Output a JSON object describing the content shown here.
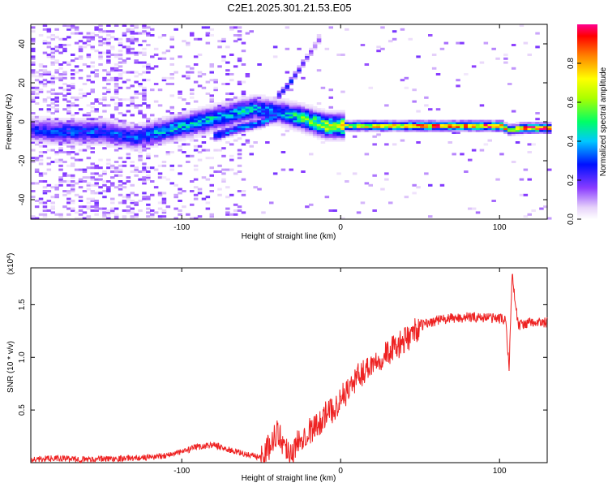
{
  "figure": {
    "title": "C2E1.2025.301.21.53.E05"
  },
  "chart_data": [
    {
      "type": "heatmap",
      "name": "spectrogram",
      "xlabel": "Height of straight line (km)",
      "ylabel": "Frequency (Hz)",
      "xlim": [
        -195,
        130
      ],
      "ylim": [
        -50,
        50
      ],
      "xticks": [
        -100,
        0,
        100
      ],
      "xtick_labels": [
        "-100",
        "0",
        "100"
      ],
      "yticks": [
        -40,
        -20,
        0,
        20,
        40
      ],
      "ytick_labels": [
        "-40",
        "-20",
        "0",
        "20",
        "40"
      ],
      "colorbar": {
        "label": "Normalized spectral amplitude",
        "range": [
          0,
          1
        ],
        "ticks": [
          0.0,
          0.2,
          0.4,
          0.6,
          0.8
        ],
        "tick_labels": [
          "0.0",
          "0.2",
          "0.4",
          "0.6",
          "0.8"
        ],
        "colors": [
          "#ffffff",
          "#b070f0",
          "#5500ff",
          "#0000ff",
          "#00c8ff",
          "#00ff66",
          "#aaff00",
          "#ffff00",
          "#ff8000",
          "#ff0000",
          "#ff0080"
        ]
      },
      "ridge": [
        {
          "x": -195,
          "y": -4,
          "amp": 0.25
        },
        {
          "x": -175,
          "y": -5,
          "amp": 0.3
        },
        {
          "x": -150,
          "y": -5,
          "amp": 0.3
        },
        {
          "x": -130,
          "y": -8,
          "amp": 0.3
        },
        {
          "x": -110,
          "y": -4,
          "amp": 0.38
        },
        {
          "x": -90,
          "y": 0,
          "amp": 0.4
        },
        {
          "x": -70,
          "y": 4,
          "amp": 0.4
        },
        {
          "x": -55,
          "y": 7,
          "amp": 0.38
        },
        {
          "x": -40,
          "y": 5,
          "amp": 0.35
        },
        {
          "x": -25,
          "y": 2,
          "amp": 0.5
        },
        {
          "x": -10,
          "y": -2,
          "amp": 0.6
        },
        {
          "x": 5,
          "y": -2,
          "amp": 0.7
        },
        {
          "x": 50,
          "y": -2,
          "amp": 0.85
        },
        {
          "x": 100,
          "y": -2,
          "amp": 0.9
        },
        {
          "x": 105,
          "y": -4,
          "amp": 0.7
        },
        {
          "x": 115,
          "y": -3,
          "amp": 0.9
        },
        {
          "x": 130,
          "y": -3,
          "amp": 0.9
        }
      ],
      "lower_branch": [
        {
          "x": -80,
          "y": -7,
          "amp": 0.35
        },
        {
          "x": -65,
          "y": -3,
          "amp": 0.35
        },
        {
          "x": -50,
          "y": 0,
          "amp": 0.35
        },
        {
          "x": -40,
          "y": 3,
          "amp": 0.35
        },
        {
          "x": -30,
          "y": 2,
          "amp": 0.3
        }
      ],
      "upper_branch": [
        {
          "x": -40,
          "y": 14,
          "amp": 0.3
        },
        {
          "x": -35,
          "y": 18,
          "amp": 0.28
        },
        {
          "x": -30,
          "y": 24,
          "amp": 0.25
        },
        {
          "x": -25,
          "y": 30,
          "amp": 0.2
        },
        {
          "x": -20,
          "y": 36,
          "amp": 0.15
        },
        {
          "x": -15,
          "y": 42,
          "amp": 0.12
        }
      ]
    },
    {
      "type": "line",
      "name": "snr",
      "xlabel": "Height of straight line (km)",
      "ylabel": "SNR (10 * v/v)",
      "scale_label": "(x10^4)",
      "scale_base": "(x10",
      "scale_exp": "4",
      "xlim": [
        -195,
        130
      ],
      "ylim": [
        0,
        1.85
      ],
      "xticks": [
        -100,
        0,
        100
      ],
      "xtick_labels": [
        "-100",
        "0",
        "100"
      ],
      "yticks": [
        0.5,
        1.0,
        1.5
      ],
      "ytick_labels": [
        "0.5",
        "1.0",
        "1.5"
      ],
      "color": "#ee2222",
      "series": [
        {
          "name": "SNR",
          "x": [
            -195,
            -180,
            -160,
            -140,
            -120,
            -110,
            -100,
            -90,
            -80,
            -70,
            -60,
            -50,
            -45,
            -40,
            -35,
            -30,
            -25,
            -20,
            -15,
            -10,
            -5,
            0,
            10,
            20,
            30,
            40,
            50,
            60,
            70,
            80,
            90,
            100,
            104,
            106,
            108,
            110,
            112,
            115,
            120,
            130
          ],
          "y": [
            0.03,
            0.04,
            0.03,
            0.04,
            0.05,
            0.07,
            0.1,
            0.15,
            0.17,
            0.12,
            0.08,
            0.05,
            0.15,
            0.3,
            0.15,
            0.1,
            0.25,
            0.3,
            0.35,
            0.45,
            0.5,
            0.6,
            0.8,
            0.95,
            1.05,
            1.15,
            1.3,
            1.35,
            1.37,
            1.38,
            1.38,
            1.37,
            1.35,
            0.9,
            1.8,
            1.5,
            1.3,
            1.32,
            1.33,
            1.33
          ]
        }
      ]
    }
  ]
}
